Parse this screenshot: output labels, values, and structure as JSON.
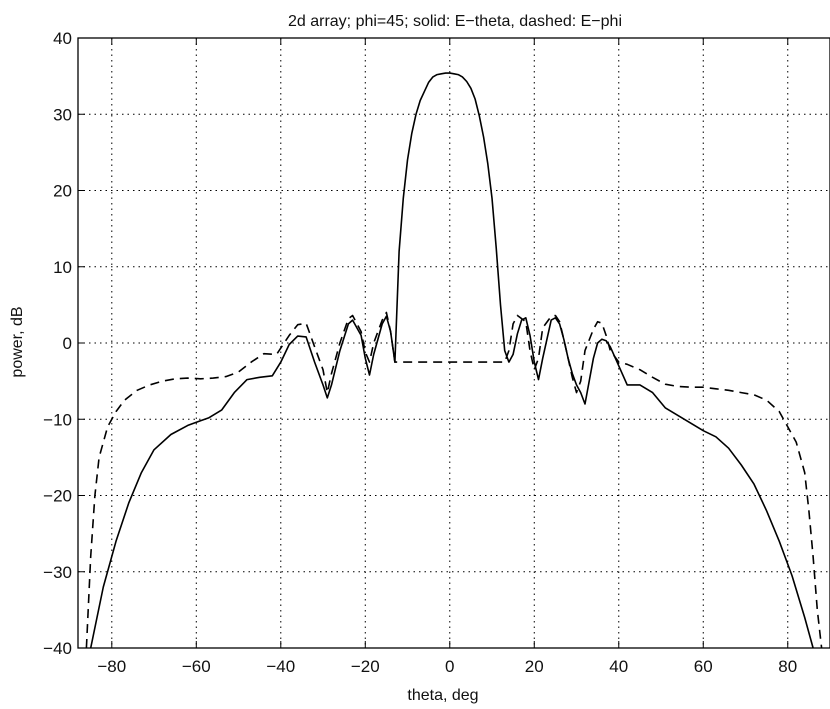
{
  "chart_data": {
    "type": "line",
    "title": "2d array; phi=45; solid: E−theta, dashed: E−phi",
    "xlabel": "theta, deg",
    "ylabel": "power, dB",
    "xlim": [
      -88,
      90
    ],
    "ylim": [
      -40,
      40
    ],
    "xticks": [
      -80,
      -60,
      -40,
      -20,
      0,
      20,
      40,
      60,
      80
    ],
    "xtick_labels": [
      "−80",
      "−60",
      "−40",
      "−20",
      "0",
      "20",
      "40",
      "60",
      "80"
    ],
    "yticks": [
      -40,
      -30,
      -20,
      -10,
      0,
      10,
      20,
      30,
      40
    ],
    "ytick_labels": [
      "−40",
      "−30",
      "−20",
      "−10",
      "0",
      "10",
      "20",
      "30",
      "40"
    ],
    "grid": true,
    "grid_style": "dotted",
    "series": [
      {
        "style": "solid",
        "color": "#000000",
        "x": [
          -85,
          -82,
          -79,
          -76,
          -73,
          -70,
          -66,
          -62,
          -59,
          -57,
          -54,
          -51,
          -48,
          -45,
          -42,
          -40,
          -38,
          -36,
          -34,
          -32,
          -30,
          -29,
          -28,
          -26,
          -24,
          -23,
          -21,
          -20,
          -19,
          -18,
          -16,
          -15,
          -14,
          -13,
          -12,
          -11,
          -10,
          -9,
          -8,
          -7,
          -6,
          -5,
          -4,
          -3,
          -2,
          -1,
          0,
          1,
          2,
          3,
          4,
          5,
          6,
          7,
          8,
          9,
          10,
          11,
          12,
          13,
          14,
          15,
          16,
          17,
          18,
          19,
          20,
          21,
          22,
          24,
          25,
          26,
          27,
          28,
          29,
          30,
          31,
          32,
          34,
          35,
          36,
          37,
          38,
          40,
          42,
          45,
          48,
          51,
          54,
          57,
          60,
          63,
          66,
          69,
          72,
          75,
          78,
          81,
          84,
          86
        ],
        "y": [
          -40,
          -32,
          -26,
          -21,
          -17,
          -14,
          -12,
          -10.8,
          -10.2,
          -9.8,
          -8.8,
          -6.5,
          -4.8,
          -4.5,
          -4.3,
          -2.5,
          -0.2,
          0.9,
          0.8,
          -2.5,
          -5.5,
          -7.2,
          -5.5,
          -1,
          2.5,
          3,
          1,
          -2,
          -4.2,
          -1.5,
          2.5,
          3.5,
          1.5,
          -2.5,
          12,
          19,
          24,
          27.5,
          30,
          31.8,
          33,
          34.2,
          34.9,
          35.2,
          35.3,
          35.4,
          35.4,
          35.3,
          35.2,
          34.9,
          34.3,
          33.4,
          32,
          29.8,
          27,
          23.5,
          19,
          12.5,
          5,
          -1,
          -2.5,
          -1.5,
          1.2,
          3,
          3.3,
          1,
          -2.5,
          -4.8,
          -2,
          3,
          3.3,
          2.5,
          0.5,
          -2,
          -4,
          -5.5,
          -6.5,
          -8,
          -2,
          0,
          0.5,
          0.3,
          -0.5,
          -3,
          -5.5,
          -5.5,
          -6.5,
          -8.5,
          -9.5,
          -10.5,
          -11.5,
          -12.3,
          -13.8,
          -16,
          -18.5,
          -22,
          -26,
          -30.5,
          -36,
          -40
        ]
      },
      {
        "style": "dashed",
        "color": "#000000",
        "x": [
          -86,
          -85,
          -84,
          -83,
          -81,
          -79,
          -77,
          -74,
          -71,
          -68,
          -65,
          -62,
          -59,
          -56,
          -53,
          -50,
          -47,
          -44,
          -41,
          -38,
          -36,
          -34,
          -32,
          -30,
          -29,
          -28,
          -26,
          -24,
          -23,
          -21,
          -20,
          -19,
          -18,
          -16,
          -15,
          -14,
          -13,
          13,
          14,
          15,
          16,
          18,
          19,
          20,
          21,
          22,
          24,
          25,
          26,
          27,
          28,
          29,
          30,
          31,
          32,
          34,
          35,
          36,
          37,
          38,
          40,
          42,
          45,
          48,
          51,
          54,
          57,
          60,
          63,
          66,
          69,
          72,
          75,
          78,
          80,
          82,
          84,
          85,
          86,
          87,
          88
        ],
        "y": [
          -40,
          -28,
          -20,
          -15,
          -11,
          -9,
          -7.5,
          -6.2,
          -5.5,
          -5,
          -4.7,
          -4.6,
          -4.7,
          -4.6,
          -4.4,
          -3.8,
          -2.5,
          -1.4,
          -1.5,
          1,
          2.4,
          2.6,
          -0.5,
          -3.5,
          -6.5,
          -4,
          0,
          3.2,
          3.6,
          1.5,
          -1.2,
          -2.5,
          0,
          3,
          4,
          1.5,
          -2.5,
          -2.5,
          -1,
          2.5,
          3.6,
          2.8,
          -1,
          -3.5,
          -2,
          2,
          3.5,
          3.6,
          2.8,
          0.5,
          -2,
          -4.5,
          -6.5,
          -5,
          -1,
          1.8,
          2.8,
          2.6,
          1,
          -1,
          -2.5,
          -2.8,
          -3.5,
          -4.5,
          -5.4,
          -5.7,
          -5.8,
          -5.8,
          -6,
          -6.2,
          -6.5,
          -6.8,
          -7.5,
          -9,
          -11,
          -13,
          -17,
          -22,
          -28,
          -35,
          -40
        ]
      }
    ]
  }
}
